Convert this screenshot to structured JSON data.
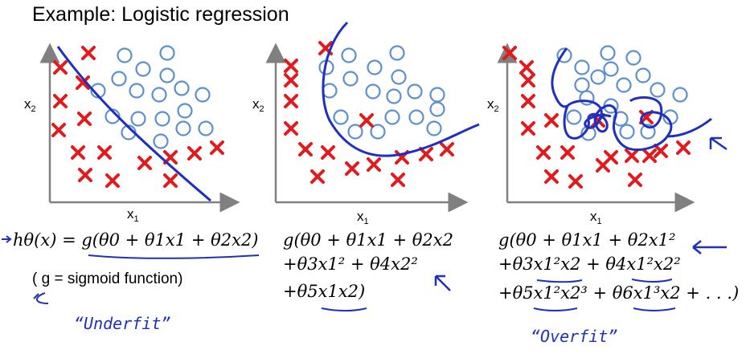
{
  "slide": {
    "title": "Example: Logistic regression"
  },
  "panels": [
    {
      "x_label": "x",
      "x_sub": "1",
      "y_label": "x",
      "y_sub": "2",
      "formula_lines": [
        "hθ(x) = g(θ0 + θ1x1 + θ2x2)"
      ],
      "note": "( g = sigmoid function)",
      "handwritten": "“Underfit”"
    },
    {
      "x_label": "x",
      "x_sub": "1",
      "y_label": "x",
      "y_sub": "2",
      "formula_lines": [
        "g(θ0 + θ1x1 + θ2x2",
        "+θ3x1² + θ4x2²",
        "+θ5x1x2)"
      ]
    },
    {
      "x_label": "x",
      "x_sub": "1",
      "y_label": "x",
      "y_sub": "2",
      "formula_lines": [
        "g(θ0 + θ1x1 + θ2x1²",
        "+θ3x1²x2 + θ4x1²x2²",
        "+θ5x1²x2³ + θ6x1³x2 + . . .)"
      ],
      "handwritten": "“Overfit”"
    }
  ],
  "colors": {
    "cross": "#e31a1c",
    "circle": "#5b8fd1",
    "boundary": "#1f2fbf",
    "axis": "#808080",
    "ink": "#1f2fbf"
  }
}
